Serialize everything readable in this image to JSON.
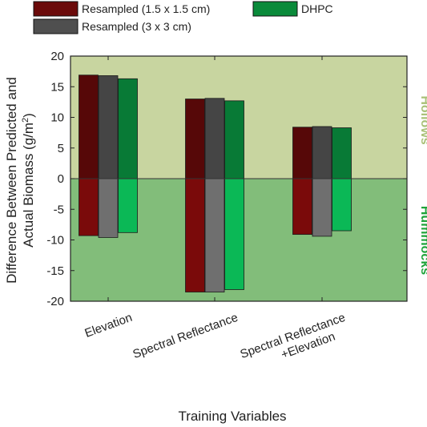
{
  "chart_data": {
    "type": "bar",
    "title": "",
    "xlabel": "Training Variables",
    "ylabel_line1": "Difference Between Predicted and",
    "ylabel_line2": "Actual Biomass (g/m",
    "ylabel_sup": "2",
    "ylabel_close": ")",
    "ylim": [
      -20,
      20
    ],
    "yticks": [
      -20,
      -15,
      -10,
      -5,
      0,
      5,
      10,
      15,
      20
    ],
    "categories": [
      {
        "lines": [
          "Elevation"
        ]
      },
      {
        "lines": [
          "Spectral Reflectance"
        ]
      },
      {
        "lines": [
          "Spectral Reflectance",
          "+Elevation"
        ]
      }
    ],
    "regions": {
      "upper_label": "Hollows",
      "lower_label": "Hummocks",
      "upper_color": "#c8d5a0",
      "lower_color": "#82bd7a",
      "upper_label_color": "#a9c077",
      "lower_label_color": "#1fa33a"
    },
    "series": [
      {
        "name": "Resampled (1.5 x 1.5 cm)",
        "legend_color": "#6b0a0a",
        "upper_color": "#560808",
        "lower_color": "#7a0a0a",
        "positive": [
          16.9,
          13.0,
          8.4
        ],
        "negative": [
          -9.3,
          -18.5,
          -9.1
        ]
      },
      {
        "name": "Resampled (3 x 3 cm)",
        "legend_color": "#4f4f4f",
        "upper_color": "#454545",
        "lower_color": "#6f6f6f",
        "positive": [
          16.8,
          13.1,
          8.5
        ],
        "negative": [
          -9.6,
          -18.5,
          -9.4
        ]
      },
      {
        "name": "DHPC",
        "legend_color": "#0a8a3a",
        "upper_color": "#087a36",
        "lower_color": "#0bb856",
        "positive": [
          16.3,
          12.7,
          8.3
        ],
        "negative": [
          -8.8,
          -18.1,
          -8.5
        ]
      }
    ],
    "grid": false,
    "legend_position": "top"
  }
}
